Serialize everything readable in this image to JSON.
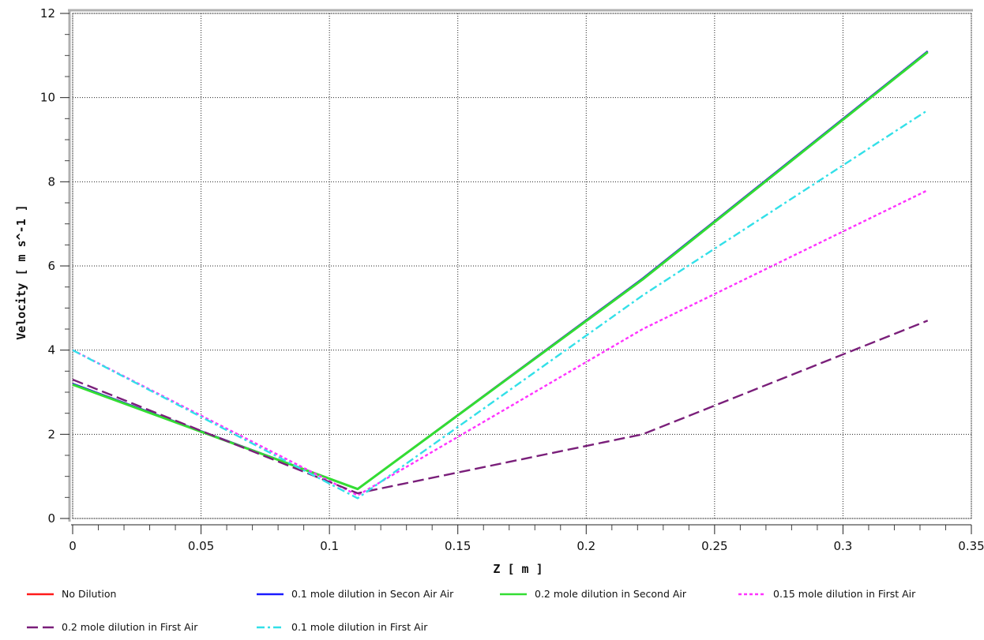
{
  "chart_data": {
    "type": "line",
    "xlabel": "Z [ m ]",
    "ylabel": "Velocity [ m s^-1 ]",
    "xlim": [
      0,
      0.35
    ],
    "ylim": [
      0,
      12
    ],
    "x_ticks": [
      "0",
      "0.05",
      "0.1",
      "0.15",
      "0.2",
      "0.25",
      "0.3",
      "0.35"
    ],
    "y_ticks": [
      "0",
      "2",
      "4",
      "6",
      "8",
      "10",
      "12"
    ],
    "grid": true,
    "legend_position": "bottom",
    "series": [
      {
        "name": "No Dilution",
        "color": "#ff1a1a",
        "dash": "solid",
        "points": [
          [
            0,
            3.2
          ],
          [
            0.111,
            0.7
          ],
          [
            0.222,
            5.7
          ],
          [
            0.333,
            11.1
          ]
        ]
      },
      {
        "name": "0.1 mole dilution in Secon Air Air",
        "color": "#1a1aff",
        "dash": "solid",
        "points": [
          [
            0,
            3.2
          ],
          [
            0.111,
            0.7
          ],
          [
            0.222,
            5.7
          ],
          [
            0.333,
            11.1
          ]
        ]
      },
      {
        "name": "0.2 mole dilution in Second Air",
        "color": "#33dd33",
        "dash": "solid",
        "points": [
          [
            0,
            3.18
          ],
          [
            0.111,
            0.7
          ],
          [
            0.222,
            5.68
          ],
          [
            0.333,
            11.08
          ]
        ]
      },
      {
        "name": "0.15 mole dilution in First Air",
        "color": "#ff33ff",
        "dash": "dotted",
        "points": [
          [
            0,
            4.0
          ],
          [
            0.111,
            0.55
          ],
          [
            0.222,
            4.5
          ],
          [
            0.333,
            7.8
          ]
        ]
      },
      {
        "name": "0.2 mole dilution in First Air",
        "color": "#7a1f7a",
        "dash": "dashed",
        "points": [
          [
            0,
            3.3
          ],
          [
            0.111,
            0.6
          ],
          [
            0.222,
            2.0
          ],
          [
            0.333,
            4.7
          ]
        ]
      },
      {
        "name": "0.1 mole dilution in First Air",
        "color": "#33e0e8",
        "dash": "dashdot",
        "points": [
          [
            0,
            4.0
          ],
          [
            0.111,
            0.48
          ],
          [
            0.222,
            5.3
          ],
          [
            0.333,
            9.7
          ]
        ]
      }
    ]
  }
}
